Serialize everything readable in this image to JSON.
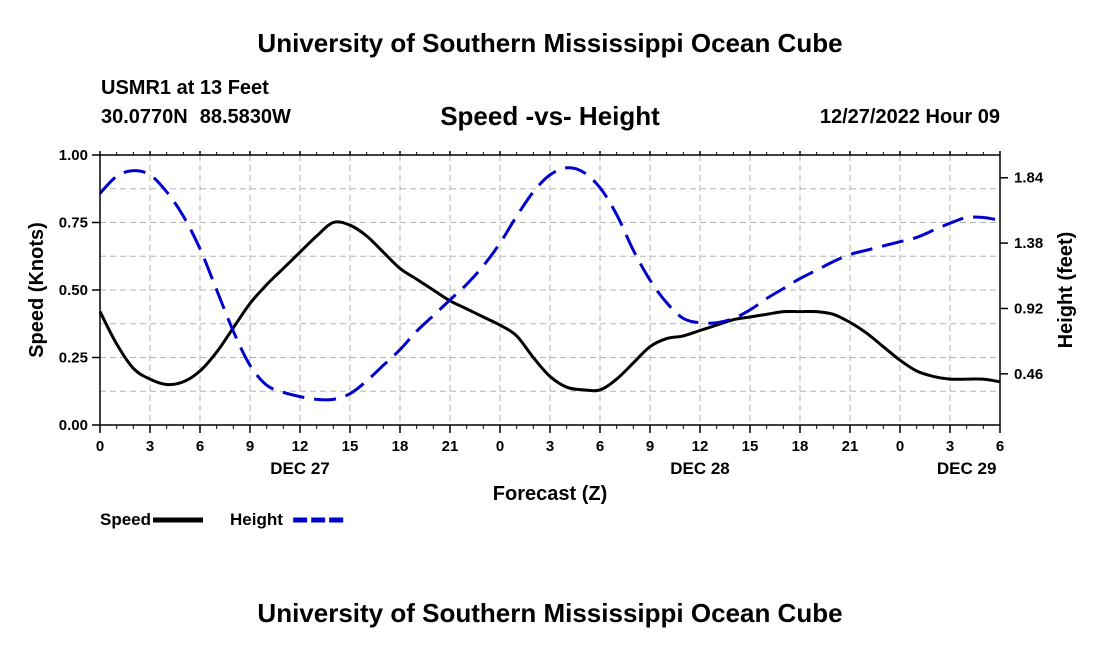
{
  "header": {
    "title": "University of Southern Mississippi Ocean Cube",
    "station": "USMR1 at 13 Feet",
    "lat": "30.0770N",
    "lon": "88.5830W",
    "subtitle": "Speed -vs- Height",
    "datetime": "12/27/2022 Hour 09"
  },
  "footer": {
    "title": "University of Southern Mississippi Ocean Cube"
  },
  "chart_data": {
    "type": "line",
    "title": "Speed -vs- Height",
    "xlabel": "Forecast (Z)",
    "ylabel": "Speed (Knots)",
    "y2label": "Height (feet)",
    "x_range": [
      0,
      54
    ],
    "ylim": [
      0,
      1
    ],
    "y2lim": [
      0.1,
      2.0
    ],
    "x_ticks": [
      0,
      3,
      6,
      9,
      12,
      15,
      18,
      21,
      24,
      27,
      30,
      33,
      36,
      39,
      42,
      45,
      48,
      51,
      54
    ],
    "x_tick_labels": [
      "0",
      "3",
      "6",
      "9",
      "12",
      "15",
      "18",
      "21",
      "0",
      "3",
      "6",
      "9",
      "12",
      "15",
      "18",
      "21",
      "0",
      "3",
      "6"
    ],
    "date_labels": [
      {
        "label": "DEC 27",
        "at": 12
      },
      {
        "label": "DEC 28",
        "at": 36
      },
      {
        "label": "DEC 29",
        "at": 52
      }
    ],
    "y_ticks": [
      0,
      0.25,
      0.5,
      0.75,
      1.0
    ],
    "y_tick_labels": [
      "0.00",
      "0.25",
      "0.50",
      "0.75",
      "1.00"
    ],
    "y2_ticks": [
      0.46,
      0.92,
      1.38,
      1.84
    ],
    "y2_tick_labels": [
      "0.46",
      "0.92",
      "1.38",
      "1.84"
    ],
    "grid": true,
    "series": [
      {
        "name": "Speed",
        "color": "#000000",
        "dashed": false,
        "axis": "left",
        "x": [
          0,
          1,
          2,
          3,
          4,
          5,
          6,
          7,
          8,
          9,
          10,
          11,
          12,
          13,
          14,
          15,
          16,
          17,
          18,
          19,
          20,
          21,
          22,
          23,
          24,
          25,
          26,
          27,
          28,
          29,
          30,
          31,
          32,
          33,
          34,
          35,
          36,
          37,
          38,
          39,
          40,
          41,
          42,
          43,
          44,
          45,
          46,
          47,
          48,
          49,
          50,
          51,
          52,
          53,
          54
        ],
        "values": [
          0.42,
          0.3,
          0.21,
          0.17,
          0.15,
          0.16,
          0.2,
          0.27,
          0.36,
          0.45,
          0.52,
          0.58,
          0.64,
          0.7,
          0.75,
          0.74,
          0.7,
          0.64,
          0.58,
          0.54,
          0.5,
          0.46,
          0.43,
          0.4,
          0.37,
          0.33,
          0.25,
          0.18,
          0.14,
          0.13,
          0.13,
          0.17,
          0.23,
          0.29,
          0.32,
          0.33,
          0.35,
          0.37,
          0.39,
          0.4,
          0.41,
          0.42,
          0.42,
          0.42,
          0.41,
          0.38,
          0.34,
          0.29,
          0.24,
          0.2,
          0.18,
          0.17,
          0.17,
          0.17,
          0.16
        ]
      },
      {
        "name": "Height",
        "color": "#0000cc",
        "dashed": true,
        "axis": "right",
        "x": [
          0,
          1,
          2,
          3,
          4,
          5,
          6,
          7,
          8,
          9,
          10,
          11,
          12,
          13,
          14,
          15,
          16,
          17,
          18,
          19,
          20,
          21,
          22,
          23,
          24,
          25,
          26,
          27,
          28,
          29,
          30,
          31,
          32,
          33,
          34,
          35,
          36,
          37,
          38,
          39,
          40,
          41,
          42,
          43,
          44,
          45,
          46,
          47,
          48,
          49,
          50,
          51,
          52,
          53,
          54
        ],
        "values": [
          1.73,
          1.85,
          1.89,
          1.86,
          1.74,
          1.57,
          1.34,
          1.05,
          0.76,
          0.52,
          0.38,
          0.33,
          0.3,
          0.28,
          0.28,
          0.32,
          0.41,
          0.52,
          0.63,
          0.76,
          0.87,
          0.98,
          1.09,
          1.22,
          1.38,
          1.57,
          1.74,
          1.86,
          1.91,
          1.88,
          1.77,
          1.58,
          1.33,
          1.12,
          0.96,
          0.85,
          0.82,
          0.82,
          0.85,
          0.91,
          0.99,
          1.06,
          1.13,
          1.19,
          1.25,
          1.3,
          1.33,
          1.36,
          1.39,
          1.42,
          1.47,
          1.52,
          1.56,
          1.56,
          1.54
        ]
      }
    ]
  }
}
